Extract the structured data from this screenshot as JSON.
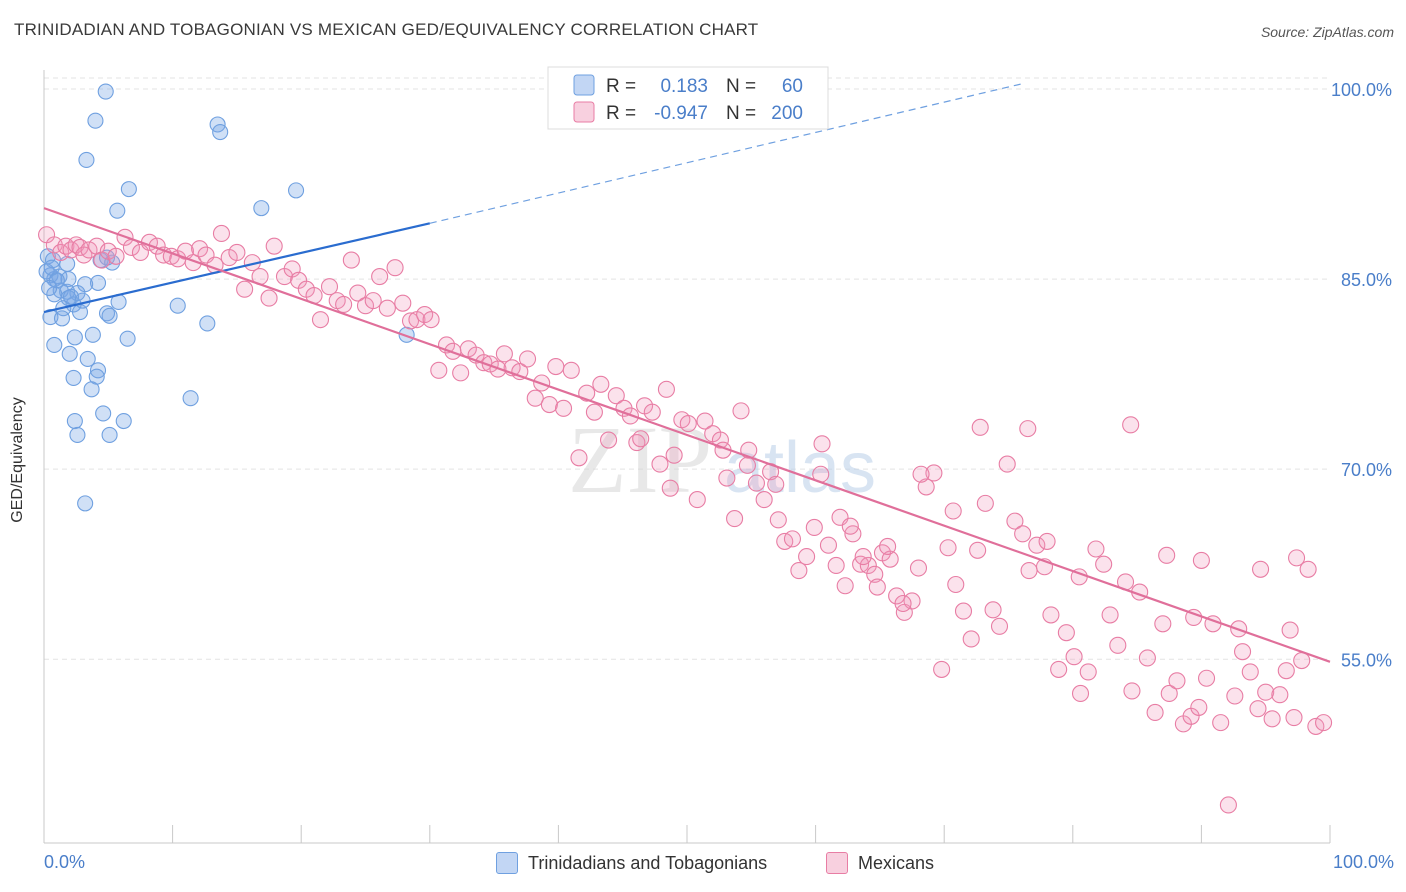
{
  "title": "TRINIDADIAN AND TOBAGONIAN VS MEXICAN GED/EQUIVALENCY CORRELATION CHART",
  "source": "Source: ZipAtlas.com",
  "colors": {
    "blue": "#6fa0e0",
    "blue_fill": "rgba(120,165,230,0.35)",
    "blue_line": "#2a6ccf",
    "pink": "#e87da4",
    "pink_fill": "rgba(240,150,185,0.28)",
    "pink_line": "#e06f9a",
    "axis_label": "#4a7ec9"
  },
  "legend_top": {
    "rows": [
      {
        "r_label": "R =",
        "r_value": "0.183",
        "n_label": "N =",
        "n_value": "60"
      },
      {
        "r_label": "R =",
        "r_value": "-0.947",
        "n_label": "N =",
        "n_value": "200"
      }
    ]
  },
  "legend_bottom": {
    "items": [
      "Trinidadians and Tobagonians",
      "Mexicans"
    ]
  },
  "x_tick_left": "0.0%",
  "x_tick_right": "100.0%",
  "chart_data": {
    "type": "scatter",
    "title": "TRINIDADIAN AND TOBAGONIAN VS MEXICAN GED/EQUIVALENCY CORRELATION CHART",
    "xlabel": "",
    "ylabel": "GED/Equivalency",
    "xlim": [
      0,
      100
    ],
    "ylim": [
      40.5,
      101.5
    ],
    "y_ticks": [
      {
        "value": 100,
        "label": "100.0%"
      },
      {
        "value": 85,
        "label": "85.0%"
      },
      {
        "value": 70,
        "label": "70.0%"
      },
      {
        "value": 55,
        "label": "55.0%"
      }
    ],
    "grid": true,
    "legend_placement": "top-center",
    "watermark": "ZIPatlas",
    "series": [
      {
        "name": "Trinidadians and Tobagonians",
        "color": "#6fa0e0",
        "trend": {
          "x1": 0,
          "y1": 82.4,
          "x2": 30,
          "y2": 89.4,
          "dashed_to_x": 76,
          "dashed_to_y": 100.4
        },
        "points": [
          [
            4.8,
            99.8
          ],
          [
            4.0,
            97.5
          ],
          [
            13.5,
            97.2
          ],
          [
            13.7,
            96.6
          ],
          [
            3.3,
            94.4
          ],
          [
            6.6,
            92.1
          ],
          [
            19.6,
            92.0
          ],
          [
            16.9,
            90.6
          ],
          [
            5.7,
            90.4
          ],
          [
            0.3,
            86.8
          ],
          [
            0.7,
            86.5
          ],
          [
            4.4,
            86.5
          ],
          [
            5.3,
            86.3
          ],
          [
            4.9,
            86.7
          ],
          [
            1.8,
            86.2
          ],
          [
            0.5,
            85.3
          ],
          [
            1.2,
            85.2
          ],
          [
            0.8,
            85.0
          ],
          [
            1.9,
            85.0
          ],
          [
            4.2,
            84.7
          ],
          [
            3.2,
            84.6
          ],
          [
            1.3,
            84.1
          ],
          [
            1.8,
            84.0
          ],
          [
            2.6,
            83.9
          ],
          [
            0.8,
            83.8
          ],
          [
            1.9,
            83.5
          ],
          [
            5.8,
            83.2
          ],
          [
            2.3,
            83.0
          ],
          [
            1.5,
            82.7
          ],
          [
            2.8,
            82.4
          ],
          [
            10.4,
            82.9
          ],
          [
            4.9,
            82.3
          ],
          [
            5.1,
            82.1
          ],
          [
            0.5,
            82.0
          ],
          [
            1.4,
            81.9
          ],
          [
            12.7,
            81.5
          ],
          [
            2.4,
            80.4
          ],
          [
            3.8,
            80.6
          ],
          [
            6.5,
            80.3
          ],
          [
            28.2,
            80.6
          ],
          [
            0.8,
            79.8
          ],
          [
            2.0,
            79.1
          ],
          [
            3.4,
            78.7
          ],
          [
            4.2,
            77.8
          ],
          [
            4.1,
            77.3
          ],
          [
            2.3,
            77.2
          ],
          [
            3.7,
            76.3
          ],
          [
            11.4,
            75.6
          ],
          [
            4.6,
            74.4
          ],
          [
            2.4,
            73.8
          ],
          [
            6.2,
            73.8
          ],
          [
            2.6,
            72.7
          ],
          [
            5.1,
            72.7
          ],
          [
            3.2,
            67.3
          ],
          [
            0.2,
            85.6
          ],
          [
            0.6,
            85.9
          ],
          [
            1.0,
            84.9
          ],
          [
            2.1,
            83.6
          ],
          [
            0.4,
            84.3
          ],
          [
            3.0,
            83.3
          ]
        ]
      },
      {
        "name": "Mexicans",
        "color": "#e87da4",
        "trend": {
          "x1": 0,
          "y1": 90.6,
          "x2": 100,
          "y2": 54.8
        },
        "points": [
          [
            0.2,
            88.5
          ],
          [
            0.8,
            87.7
          ],
          [
            1.3,
            87.1
          ],
          [
            1.7,
            87.6
          ],
          [
            2.1,
            87.3
          ],
          [
            2.5,
            87.7
          ],
          [
            2.8,
            87.5
          ],
          [
            3.1,
            86.9
          ],
          [
            3.5,
            87.3
          ],
          [
            4.1,
            87.6
          ],
          [
            4.5,
            86.5
          ],
          [
            5.0,
            87.2
          ],
          [
            5.6,
            86.8
          ],
          [
            6.3,
            88.3
          ],
          [
            6.8,
            87.5
          ],
          [
            7.5,
            87.1
          ],
          [
            8.2,
            87.9
          ],
          [
            8.8,
            87.6
          ],
          [
            9.3,
            86.9
          ],
          [
            9.9,
            86.8
          ],
          [
            10.4,
            86.6
          ],
          [
            11.0,
            87.2
          ],
          [
            11.6,
            86.3
          ],
          [
            12.1,
            87.4
          ],
          [
            12.6,
            86.9
          ],
          [
            13.3,
            86.1
          ],
          [
            13.8,
            88.6
          ],
          [
            14.4,
            86.7
          ],
          [
            15.0,
            87.1
          ],
          [
            15.6,
            84.2
          ],
          [
            16.2,
            86.3
          ],
          [
            16.8,
            85.2
          ],
          [
            17.5,
            83.5
          ],
          [
            17.9,
            87.6
          ],
          [
            18.7,
            85.2
          ],
          [
            19.3,
            85.8
          ],
          [
            19.8,
            84.9
          ],
          [
            20.4,
            84.2
          ],
          [
            21.0,
            83.7
          ],
          [
            21.5,
            81.8
          ],
          [
            22.2,
            84.4
          ],
          [
            22.8,
            83.3
          ],
          [
            23.3,
            83.0
          ],
          [
            23.9,
            86.5
          ],
          [
            24.4,
            83.9
          ],
          [
            25.0,
            82.9
          ],
          [
            25.6,
            83.3
          ],
          [
            26.1,
            85.2
          ],
          [
            26.7,
            82.7
          ],
          [
            27.3,
            85.9
          ],
          [
            27.9,
            83.1
          ],
          [
            28.5,
            81.7
          ],
          [
            29.0,
            81.8
          ],
          [
            29.6,
            82.2
          ],
          [
            30.1,
            81.8
          ],
          [
            30.7,
            77.8
          ],
          [
            31.3,
            79.8
          ],
          [
            31.8,
            79.3
          ],
          [
            32.4,
            77.6
          ],
          [
            33.0,
            79.5
          ],
          [
            33.6,
            79.0
          ],
          [
            34.2,
            78.4
          ],
          [
            34.7,
            78.3
          ],
          [
            35.3,
            77.9
          ],
          [
            35.8,
            79.1
          ],
          [
            36.4,
            78.0
          ],
          [
            37.0,
            77.7
          ],
          [
            37.6,
            78.7
          ],
          [
            38.2,
            75.6
          ],
          [
            38.7,
            76.8
          ],
          [
            39.3,
            75.1
          ],
          [
            39.8,
            78.1
          ],
          [
            40.4,
            74.8
          ],
          [
            41.0,
            77.8
          ],
          [
            41.6,
            70.9
          ],
          [
            42.2,
            76.0
          ],
          [
            42.8,
            74.5
          ],
          [
            43.3,
            76.7
          ],
          [
            43.9,
            72.3
          ],
          [
            44.5,
            75.8
          ],
          [
            45.1,
            74.8
          ],
          [
            45.6,
            74.2
          ],
          [
            46.1,
            72.1
          ],
          [
            46.7,
            75.0
          ],
          [
            47.3,
            74.5
          ],
          [
            47.9,
            70.4
          ],
          [
            48.4,
            76.3
          ],
          [
            49.0,
            71.1
          ],
          [
            49.6,
            73.9
          ],
          [
            50.1,
            73.6
          ],
          [
            50.8,
            67.6
          ],
          [
            51.4,
            73.8
          ],
          [
            52.0,
            72.8
          ],
          [
            52.6,
            72.3
          ],
          [
            53.1,
            69.3
          ],
          [
            53.7,
            66.1
          ],
          [
            54.2,
            74.6
          ],
          [
            54.8,
            71.5
          ],
          [
            55.4,
            68.9
          ],
          [
            56.0,
            67.6
          ],
          [
            56.5,
            69.8
          ],
          [
            57.1,
            66.0
          ],
          [
            57.6,
            64.3
          ],
          [
            58.2,
            64.5
          ],
          [
            58.7,
            62.0
          ],
          [
            59.3,
            63.1
          ],
          [
            59.9,
            65.4
          ],
          [
            60.4,
            69.6
          ],
          [
            61.0,
            64.0
          ],
          [
            61.6,
            62.4
          ],
          [
            62.3,
            60.8
          ],
          [
            62.9,
            64.9
          ],
          [
            63.5,
            62.5
          ],
          [
            64.1,
            62.4
          ],
          [
            64.6,
            61.7
          ],
          [
            65.2,
            63.4
          ],
          [
            65.8,
            62.9
          ],
          [
            66.3,
            60.0
          ],
          [
            66.9,
            58.7
          ],
          [
            67.5,
            59.6
          ],
          [
            68.0,
            62.2
          ],
          [
            68.6,
            68.6
          ],
          [
            69.2,
            69.7
          ],
          [
            69.8,
            54.2
          ],
          [
            70.3,
            63.8
          ],
          [
            70.9,
            60.9
          ],
          [
            71.5,
            58.8
          ],
          [
            72.1,
            56.6
          ],
          [
            72.6,
            63.6
          ],
          [
            73.2,
            67.3
          ],
          [
            73.8,
            58.9
          ],
          [
            74.3,
            57.6
          ],
          [
            74.9,
            70.4
          ],
          [
            75.5,
            65.9
          ],
          [
            76.1,
            64.9
          ],
          [
            76.6,
            62.0
          ],
          [
            77.2,
            64.0
          ],
          [
            77.8,
            62.3
          ],
          [
            78.3,
            58.5
          ],
          [
            78.9,
            54.2
          ],
          [
            79.5,
            57.1
          ],
          [
            80.1,
            55.2
          ],
          [
            80.6,
            52.3
          ],
          [
            81.2,
            54.0
          ],
          [
            81.8,
            63.7
          ],
          [
            82.4,
            62.5
          ],
          [
            82.9,
            58.5
          ],
          [
            83.5,
            56.1
          ],
          [
            84.1,
            61.1
          ],
          [
            84.6,
            52.5
          ],
          [
            85.2,
            60.3
          ],
          [
            85.8,
            55.1
          ],
          [
            86.4,
            50.8
          ],
          [
            87.0,
            57.8
          ],
          [
            87.5,
            52.3
          ],
          [
            88.1,
            53.3
          ],
          [
            88.6,
            49.9
          ],
          [
            89.2,
            50.5
          ],
          [
            89.8,
            51.2
          ],
          [
            90.4,
            53.5
          ],
          [
            90.9,
            57.8
          ],
          [
            91.5,
            50.0
          ],
          [
            92.1,
            43.5
          ],
          [
            92.6,
            52.1
          ],
          [
            93.2,
            55.6
          ],
          [
            93.8,
            54.0
          ],
          [
            94.4,
            51.1
          ],
          [
            95.0,
            52.4
          ],
          [
            95.5,
            50.3
          ],
          [
            96.1,
            52.2
          ],
          [
            96.6,
            54.1
          ],
          [
            97.2,
            50.4
          ],
          [
            97.8,
            54.9
          ],
          [
            98.3,
            62.1
          ],
          [
            98.9,
            49.7
          ],
          [
            99.5,
            50.0
          ],
          [
            72.8,
            73.3
          ],
          [
            76.5,
            73.2
          ],
          [
            84.5,
            73.5
          ],
          [
            60.5,
            72.0
          ],
          [
            54.7,
            70.3
          ],
          [
            61.9,
            66.2
          ],
          [
            68.2,
            69.6
          ],
          [
            65.6,
            63.9
          ],
          [
            87.3,
            63.2
          ],
          [
            90.0,
            62.8
          ],
          [
            94.6,
            62.1
          ],
          [
            97.4,
            63.0
          ],
          [
            89.4,
            58.3
          ],
          [
            92.9,
            57.4
          ],
          [
            96.9,
            57.3
          ],
          [
            80.5,
            61.5
          ],
          [
            78.0,
            64.3
          ],
          [
            62.7,
            65.5
          ],
          [
            70.7,
            66.7
          ],
          [
            64.8,
            60.7
          ],
          [
            63.7,
            63.1
          ],
          [
            66.8,
            59.4
          ],
          [
            56.9,
            68.8
          ],
          [
            52.8,
            71.5
          ],
          [
            48.7,
            68.5
          ],
          [
            46.4,
            72.4
          ]
        ]
      }
    ]
  }
}
